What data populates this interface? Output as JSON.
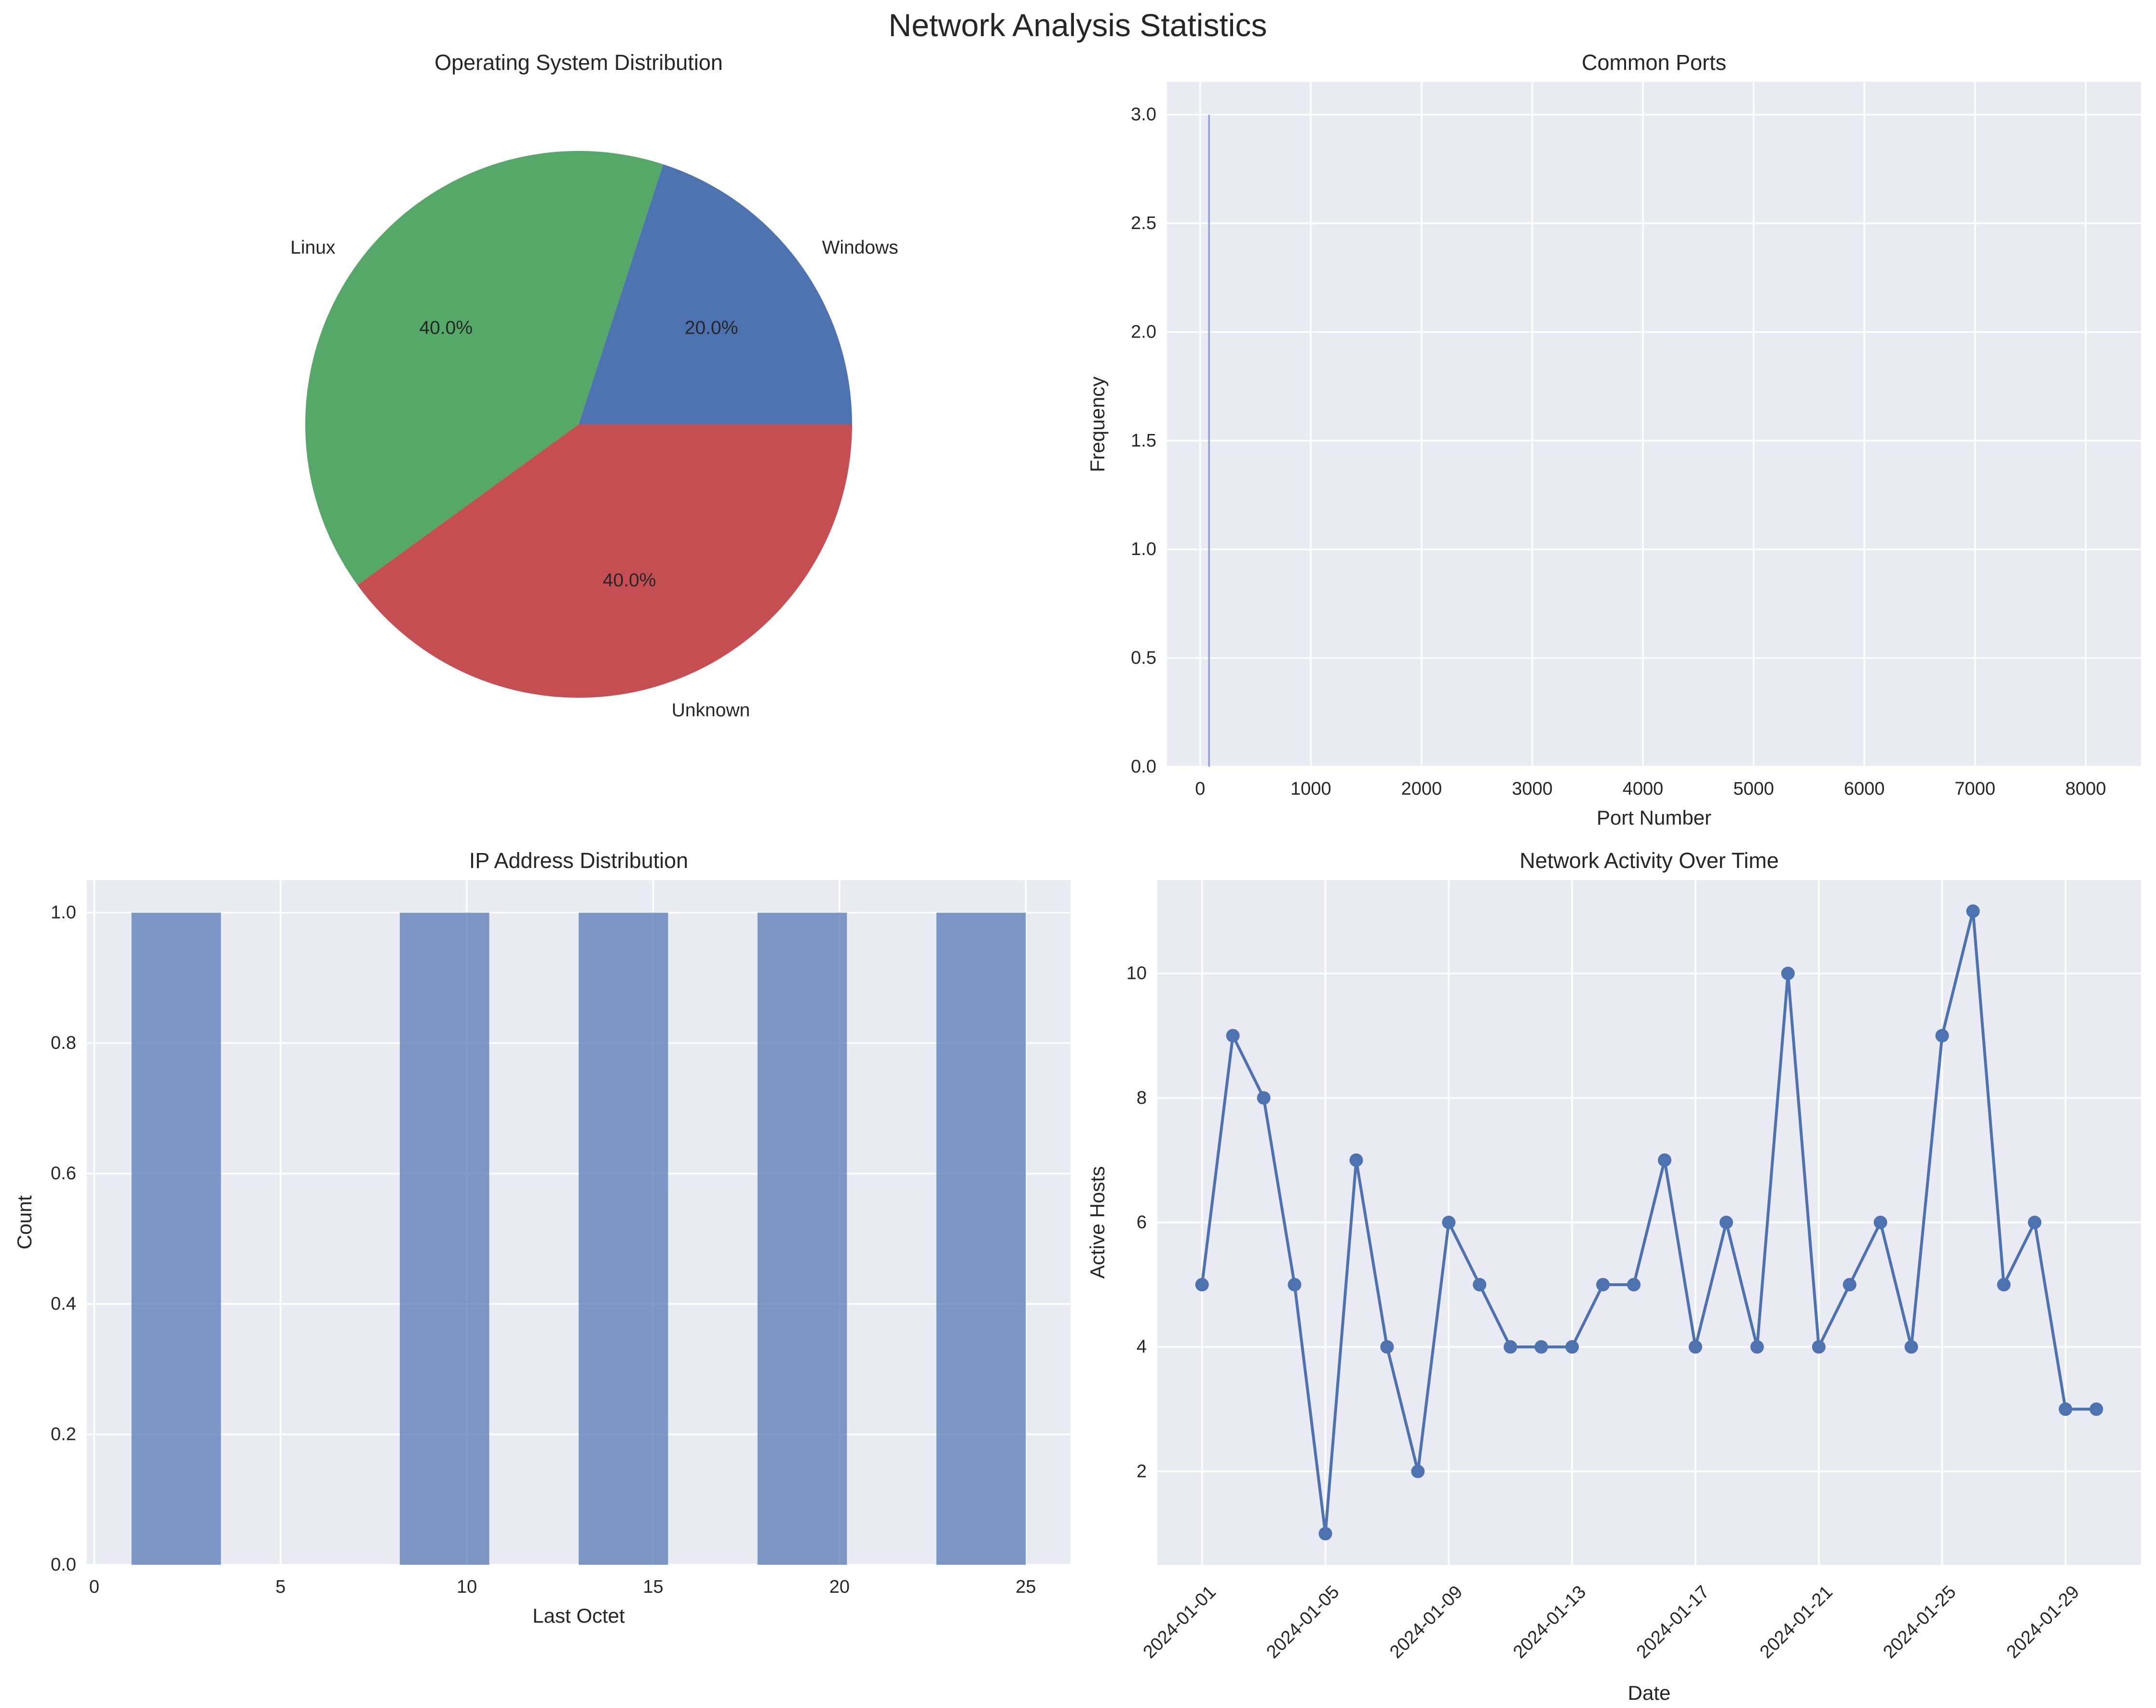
{
  "figure": {
    "title": "Network Analysis Statistics"
  },
  "colors": {
    "blue": "#4c72b0",
    "green": "#55a868",
    "red": "#c44e52",
    "axes_bg": "#eaeaf2",
    "grid": "#ffffff",
    "text": "#262626"
  },
  "chart_data": [
    {
      "type": "pie",
      "title": "Operating System Distribution",
      "labels": [
        "Windows",
        "Linux",
        "Unknown"
      ],
      "values": [
        20,
        40,
        40
      ],
      "pct_labels": [
        "20.0%",
        "40.0%",
        "40.0%"
      ]
    },
    {
      "type": "bar",
      "title": "Common Ports",
      "xlabel": "Port Number",
      "ylabel": "Frequency",
      "xlim": [
        -300,
        8500
      ],
      "ylim": [
        0,
        3.15
      ],
      "xticks": [
        0,
        1000,
        2000,
        3000,
        4000,
        5000,
        6000,
        7000,
        8000
      ],
      "xtick_labels": [
        "0",
        "1000",
        "2000",
        "3000",
        "4000",
        "5000",
        "6000",
        "7000",
        "8000"
      ],
      "yticks": [
        0,
        0.5,
        1,
        1.5,
        2,
        2.5,
        3
      ],
      "ytick_labels": [
        "0.0",
        "0.5",
        "1.0",
        "1.5",
        "2.0",
        "2.5",
        "3.0"
      ],
      "ports": [
        80
      ],
      "values": [
        3
      ]
    },
    {
      "type": "bar",
      "title": "IP Address Distribution",
      "xlabel": "Last Octet",
      "ylabel": "Count",
      "xlim": [
        -0.2,
        26.2
      ],
      "ylim": [
        0,
        1.05
      ],
      "xticks": [
        0,
        5,
        10,
        15,
        20,
        25
      ],
      "xtick_labels": [
        "0",
        "5",
        "10",
        "15",
        "20",
        "25"
      ],
      "yticks": [
        0,
        0.2,
        0.4,
        0.6,
        0.8,
        1.0
      ],
      "ytick_labels": [
        "0.0",
        "0.2",
        "0.4",
        "0.6",
        "0.8",
        "1.0"
      ],
      "bins": [
        {
          "start": 1.0,
          "end": 3.4,
          "value": 1
        },
        {
          "start": 8.2,
          "end": 10.6,
          "value": 1
        },
        {
          "start": 13.0,
          "end": 15.4,
          "value": 1
        },
        {
          "start": 17.8,
          "end": 20.2,
          "value": 1
        },
        {
          "start": 22.6,
          "end": 25.0,
          "value": 1
        }
      ]
    },
    {
      "type": "line",
      "title": "Network Activity Over Time",
      "xlabel": "Date",
      "ylabel": "Active Hosts",
      "xlim": [
        -1.45,
        30.45
      ],
      "ylim": [
        0.5,
        11.5
      ],
      "xticks": [
        0,
        4,
        8,
        12,
        16,
        20,
        24,
        28
      ],
      "xtick_labels": [
        "2024-01-01",
        "2024-01-05",
        "2024-01-09",
        "2024-01-13",
        "2024-01-17",
        "2024-01-21",
        "2024-01-25",
        "2024-01-29"
      ],
      "yticks": [
        2,
        4,
        6,
        8,
        10
      ],
      "ytick_labels": [
        "2",
        "4",
        "6",
        "8",
        "10"
      ],
      "values": [
        5,
        9,
        8,
        5,
        1,
        7,
        4,
        2,
        6,
        5,
        4,
        4,
        4,
        5,
        5,
        7,
        4,
        6,
        4,
        10,
        4,
        5,
        6,
        4,
        9,
        11,
        5,
        6,
        3,
        3
      ]
    }
  ]
}
